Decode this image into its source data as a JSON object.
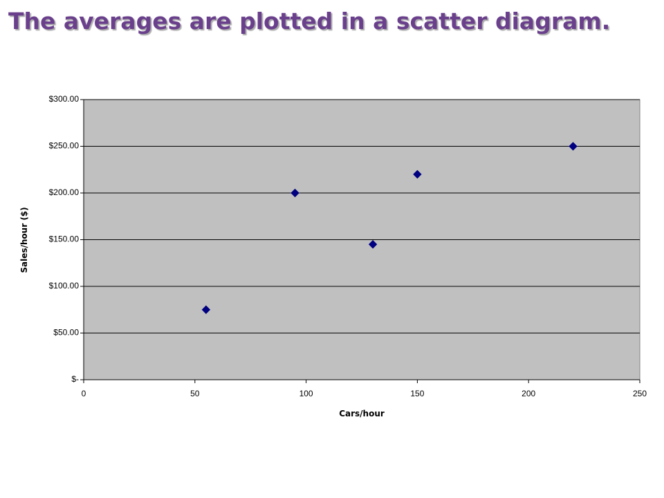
{
  "chart_data": {
    "type": "scatter",
    "title": "The averages are plotted in a scatter diagram.",
    "x_label": "Cars/hour",
    "y_label": "Sales/hour ($)",
    "x": [
      55,
      95,
      130,
      150,
      220
    ],
    "values": [
      75,
      200,
      145,
      220,
      250
    ],
    "color": "#000080",
    "xlim": [
      0,
      250
    ],
    "xticks": [
      0,
      50,
      100,
      150,
      200,
      250
    ],
    "ylim": [
      0,
      300
    ],
    "yticks": [
      {
        "value": 0,
        "label": "$-"
      },
      {
        "value": 50,
        "label": "$50.00"
      },
      {
        "value": 100,
        "label": "$100.00"
      },
      {
        "value": 150,
        "label": "$150.00"
      },
      {
        "value": 200,
        "label": "$200.00"
      },
      {
        "value": 250,
        "label": "$250.00"
      },
      {
        "value": 300,
        "label": "$300.00"
      }
    ],
    "grid": true
  }
}
